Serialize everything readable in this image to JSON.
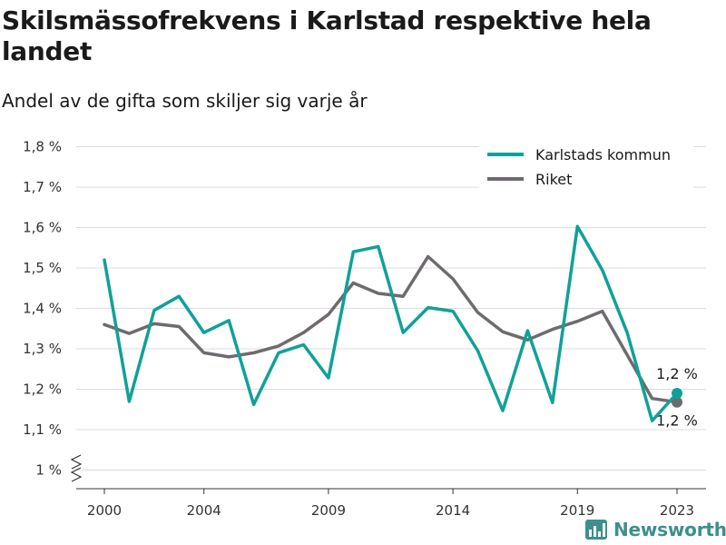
{
  "chart_data": {
    "type": "line",
    "title": "Skilsmässofrekvens i Karlstad respektive hela landet",
    "subtitle": "Andel av de gifta som skiljer sig varje år",
    "x": [
      2000,
      2001,
      2002,
      2003,
      2004,
      2005,
      2006,
      2007,
      2008,
      2009,
      2010,
      2011,
      2012,
      2013,
      2014,
      2015,
      2016,
      2017,
      2018,
      2019,
      2020,
      2021,
      2022,
      2023
    ],
    "x_ticks": [
      2000,
      2004,
      2009,
      2014,
      2019,
      2023
    ],
    "y_ticks": [
      1.0,
      1.1,
      1.2,
      1.3,
      1.4,
      1.5,
      1.6,
      1.7,
      1.8
    ],
    "y_tick_labels": [
      "1 %",
      "1,1 %",
      "1,2 %",
      "1,3 %",
      "1,4 %",
      "1,5 %",
      "1,6 %",
      "1,7 %",
      "1,8 %"
    ],
    "xlim": [
      1999.2,
      2024.2
    ],
    "ylim": [
      0.95,
      1.83
    ],
    "axis_break": true,
    "grid": true,
    "legend_position": "top-right",
    "series": [
      {
        "name": "Karlstads kommun",
        "color": "#0fa199",
        "values": [
          1.52,
          1.17,
          1.395,
          1.43,
          1.34,
          1.37,
          1.162,
          1.29,
          1.31,
          1.228,
          1.54,
          1.553,
          1.34,
          1.402,
          1.393,
          1.295,
          1.147,
          1.345,
          1.167,
          1.603,
          1.495,
          1.34,
          1.122,
          1.19
        ],
        "end_label": "1,2 %"
      },
      {
        "name": "Riket",
        "color": "#6e6a6f",
        "values": [
          1.36,
          1.338,
          1.362,
          1.355,
          1.29,
          1.28,
          1.29,
          1.307,
          1.34,
          1.385,
          1.463,
          1.437,
          1.43,
          1.528,
          1.473,
          1.39,
          1.342,
          1.322,
          1.348,
          1.368,
          1.393,
          1.285,
          1.177,
          1.168
        ],
        "end_label": "1,2 %"
      }
    ]
  },
  "brand": {
    "name": "Newsworthy",
    "color": "#3d8f8c"
  }
}
